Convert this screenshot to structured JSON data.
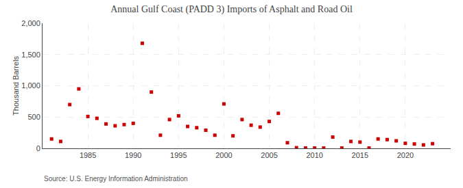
{
  "chart_data": {
    "type": "scatter",
    "title": "Annual Gulf Coast (PADD 3) Imports of Asphalt and Road Oil",
    "ylabel": "Thousand Barrels",
    "annotations": [
      "Source: U.S. Energy Information Administration"
    ],
    "x": [
      1981,
      1982,
      1983,
      1984,
      1985,
      1986,
      1987,
      1988,
      1989,
      1990,
      1991,
      1992,
      1993,
      1994,
      1995,
      1996,
      1997,
      1998,
      1999,
      2000,
      2001,
      2002,
      2003,
      2004,
      2005,
      2006,
      2007,
      2008,
      2009,
      2010,
      2011,
      2012,
      2013,
      2014,
      2015,
      2016,
      2017,
      2018,
      2019,
      2020,
      2021,
      2022,
      2023
    ],
    "values": [
      150,
      110,
      700,
      950,
      510,
      480,
      390,
      360,
      380,
      400,
      1680,
      900,
      210,
      460,
      520,
      350,
      330,
      290,
      210,
      710,
      200,
      460,
      370,
      340,
      430,
      560,
      90,
      10,
      5,
      5,
      5,
      180,
      5,
      110,
      100,
      5,
      150,
      140,
      120,
      80,
      70,
      55,
      75
    ],
    "color": "#cc0000",
    "marker": "square",
    "xlim": [
      1980,
      2025
    ],
    "xticks": [
      1985,
      1990,
      1995,
      2000,
      2005,
      2010,
      2015,
      2020
    ],
    "ylim": [
      0,
      2000
    ],
    "yticks": [
      0,
      500,
      {
        "value": 1000,
        "label": "1,000"
      },
      {
        "value": 1500,
        "label": "1,500"
      },
      {
        "value": 2000,
        "label": "2,000"
      }
    ],
    "grid": true
  }
}
